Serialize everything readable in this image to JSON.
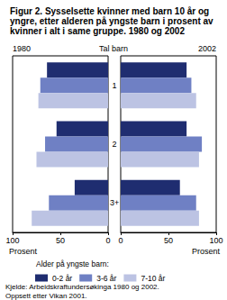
{
  "title": "Figur 2. Sysselsette kvinner med barn 10 år og yngre, etter alderen på yngste barn i prosent av kvinner i alt i same gruppe. 1980 og 2002",
  "category_label": "Tal barn",
  "legend_title": "Alder på yngste barn:",
  "source": [
    "Kjelde: Arbeidskraftundersøkinga 1980 og 2002.",
    "Oppsett etter Vikan 2001."
  ],
  "chart_data": [
    {
      "type": "bar",
      "title": "1980",
      "orientation": "horizontal",
      "grid": false,
      "legend": "bottom",
      "categories": [
        "1",
        "2",
        "3+"
      ],
      "series": [
        {
          "name": "0-2 år",
          "color": "#1f2d70",
          "values": [
            64,
            54,
            35
          ]
        },
        {
          "name": "3-6 år",
          "color": "#6f80c4",
          "values": [
            71,
            66,
            62
          ]
        },
        {
          "name": "7-10 år",
          "color": "#bcc3e3",
          "values": [
            73,
            75,
            80
          ]
        }
      ],
      "xlim": [
        0,
        100
      ],
      "xticks": [
        0,
        50,
        100
      ],
      "xlabel": "Prosent"
    },
    {
      "type": "bar",
      "title": "2002",
      "orientation": "horizontal",
      "grid": false,
      "categories": [
        "1",
        "2",
        "3+"
      ],
      "series": [
        {
          "name": "0-2 år",
          "color": "#1f2d70",
          "values": [
            69,
            69,
            62
          ]
        },
        {
          "name": "3-6 år",
          "color": "#6f80c4",
          "values": [
            74,
            85,
            79
          ]
        },
        {
          "name": "7-10 år",
          "color": "#bcc3e3",
          "values": [
            79,
            82,
            82
          ]
        }
      ],
      "xlim": [
        0,
        100
      ],
      "xticks": [
        0,
        50,
        100
      ],
      "xlabel": "Prosent"
    }
  ]
}
